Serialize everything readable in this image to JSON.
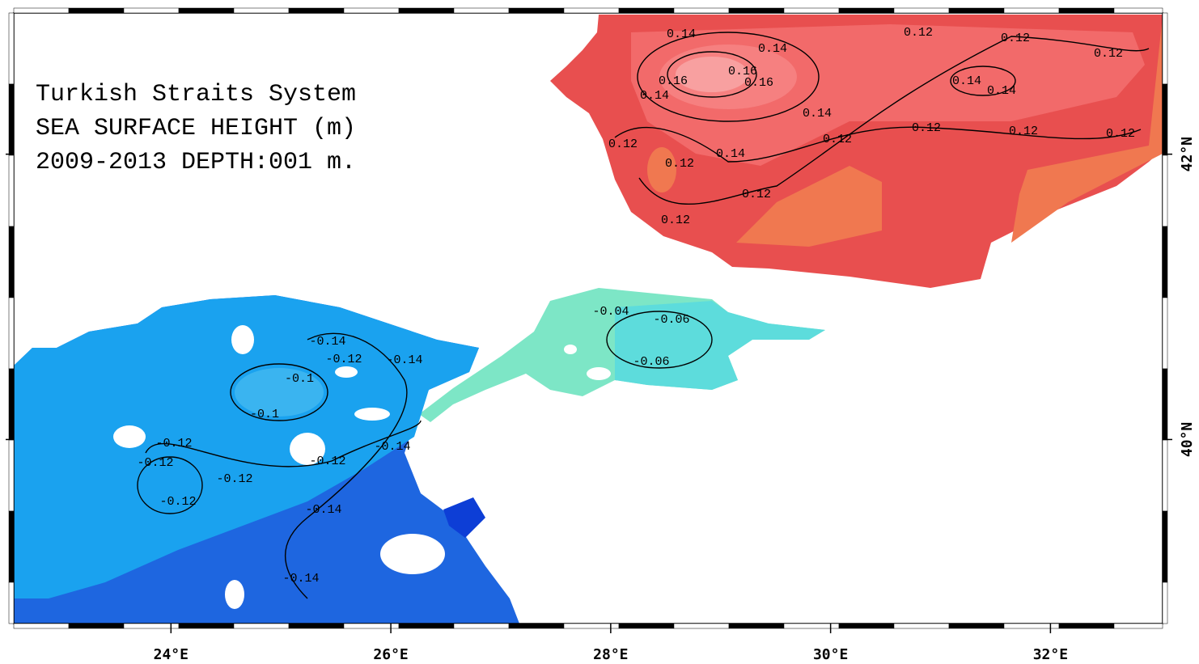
{
  "map": {
    "title": "Turkish Straits System",
    "subtitle": "SEA SURFACE HEIGHT (m)",
    "period": "2009-2013 DEPTH:001 m.",
    "xlim": [
      22.57,
      33.02
    ],
    "ylim": [
      38.71,
      42.99
    ],
    "xticks": [
      {
        "value": 24,
        "label": "24°E"
      },
      {
        "value": 26,
        "label": "26°E"
      },
      {
        "value": 28,
        "label": "28°E"
      },
      {
        "value": 30,
        "label": "30°E"
      },
      {
        "value": 32,
        "label": "32°E"
      }
    ],
    "yticks": [
      {
        "value": 40,
        "label": "40°N"
      },
      {
        "value": 42,
        "label": "42°N"
      }
    ],
    "contour_labels": [
      "0.14",
      "0.14",
      "0.12",
      "0.12",
      "0.12",
      "0.16",
      "0.16",
      "0.16",
      "0.14",
      "0.14",
      "0.14",
      "0.14",
      "0.12",
      "0.12",
      "0.12",
      "0.12",
      "0.12",
      "0.14",
      "0.12",
      "0.12",
      "0.12",
      "-0.06",
      "-0.06",
      "-0.04",
      "-0.14",
      "-0.12",
      "-0.14",
      "-0.1",
      "-0.1",
      "-0.12",
      "-0.12",
      "-0.12",
      "-0.12",
      "-0.14",
      "-0.12",
      "-0.14",
      "-0.14"
    ]
  }
}
